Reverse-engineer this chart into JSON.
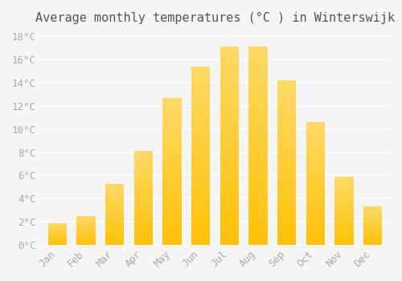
{
  "title": "Average monthly temperatures (°C ) in Winterswijk",
  "months": [
    "Jan",
    "Feb",
    "Mar",
    "Apr",
    "May",
    "Jun",
    "Jul",
    "Aug",
    "Sep",
    "Oct",
    "Nov",
    "Dec"
  ],
  "values": [
    1.9,
    2.5,
    5.3,
    8.1,
    12.7,
    15.4,
    17.1,
    17.1,
    14.2,
    10.6,
    5.9,
    3.3
  ],
  "bar_color_bottom": "#FFC107",
  "bar_color_top": "#FFD966",
  "background_color": "#F5F5F5",
  "grid_color": "#FFFFFF",
  "yticks": [
    0,
    2,
    4,
    6,
    8,
    10,
    12,
    14,
    16,
    18
  ],
  "ylim": [
    0,
    18.5
  ],
  "tick_label_color": "#AAAAAA",
  "title_color": "#555555",
  "title_fontsize": 11,
  "tick_fontsize": 9,
  "font_family": "monospace"
}
